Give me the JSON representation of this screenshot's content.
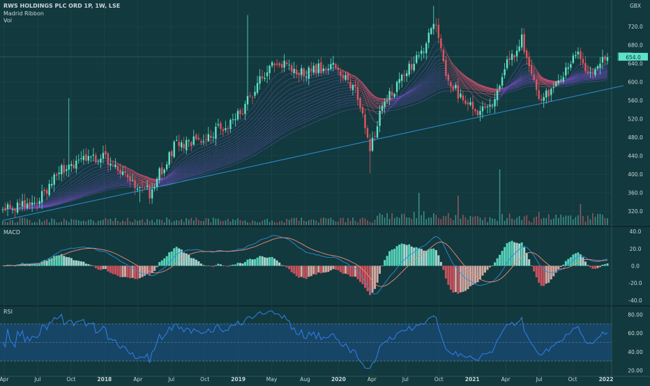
{
  "header": {
    "title": "RWS HOLDINGS PLC ORD 1P, 1W, LSE",
    "indicator_1": "Madrid Ribbon",
    "indicator_2": "Vol"
  },
  "colors": {
    "background": "#12393d",
    "grid": "#1e4a4e",
    "axis_text": "#c9d6d7",
    "up": "#5ee3c8",
    "down": "#e05561",
    "trendline": "#2f8cd8",
    "ribbon_up": "#6a4bb5",
    "ribbon_down": "#d24f72",
    "macd_line": "#2f8cd8",
    "signal_line": "#f08c78",
    "rsi_line": "#2f7be0",
    "rsi_band": "#1a4a78"
  },
  "chart_data": [
    {
      "type": "candlestick",
      "pane": "price",
      "symbol": "RWS",
      "last_price_label": "654.0",
      "currency_label": "GBX",
      "y_ticks": [
        "720.0",
        "680.0",
        "640.0",
        "600.0",
        "560.0",
        "520.0",
        "480.0",
        "440.0",
        "400.0",
        "360.0",
        "320.0"
      ],
      "ylim": [
        290,
        770
      ],
      "x_ticks": [
        "Apr",
        "Jul",
        "Oct",
        "2018",
        "Apr",
        "Jul",
        "Oct",
        "2019",
        "May",
        "Aug",
        "2020",
        "Apr",
        "Jul",
        "Oct",
        "2021",
        "Apr",
        "Jul",
        "Oct",
        "2022"
      ],
      "trendline": {
        "start": {
          "week": 0,
          "price": 300
        },
        "end": {
          "week": 245,
          "price": 580
        }
      },
      "key_points": [
        {
          "week": 0,
          "price": 322
        },
        {
          "week": 15,
          "price": 345
        },
        {
          "week": 25,
          "price": 415
        },
        {
          "week": 35,
          "price": 440
        },
        {
          "week": 45,
          "price": 430
        },
        {
          "week": 55,
          "price": 375
        },
        {
          "week": 60,
          "price": 360
        },
        {
          "week": 70,
          "price": 460
        },
        {
          "week": 80,
          "price": 475
        },
        {
          "week": 95,
          "price": 520
        },
        {
          "week": 110,
          "price": 640
        },
        {
          "week": 125,
          "price": 620
        },
        {
          "week": 135,
          "price": 640
        },
        {
          "week": 145,
          "price": 570
        },
        {
          "week": 150,
          "price": 450
        },
        {
          "week": 155,
          "price": 545
        },
        {
          "week": 165,
          "price": 625
        },
        {
          "week": 172,
          "price": 660
        },
        {
          "week": 176,
          "price": 738
        },
        {
          "week": 182,
          "price": 600
        },
        {
          "week": 192,
          "price": 540
        },
        {
          "week": 198,
          "price": 535
        },
        {
          "week": 206,
          "price": 640
        },
        {
          "week": 212,
          "price": 690
        },
        {
          "week": 220,
          "price": 555
        },
        {
          "week": 228,
          "price": 610
        },
        {
          "week": 234,
          "price": 670
        },
        {
          "week": 240,
          "price": 610
        },
        {
          "week": 247,
          "price": 654
        }
      ]
    },
    {
      "type": "bar",
      "pane": "volume",
      "series": [
        {
          "name": "Vol"
        }
      ]
    },
    {
      "type": "line",
      "pane": "macd",
      "label": "MACD",
      "y_ticks": [
        "40.0",
        "20.0",
        "0.0",
        "-20.0",
        "-40.0"
      ],
      "ylim": [
        -45,
        45
      ]
    },
    {
      "type": "line",
      "pane": "rsi",
      "label": "RSI",
      "y_ticks": [
        "80.00",
        "60.00",
        "40.00",
        "20.00"
      ],
      "ylim": [
        15,
        88
      ],
      "band": [
        30,
        70
      ]
    }
  ]
}
